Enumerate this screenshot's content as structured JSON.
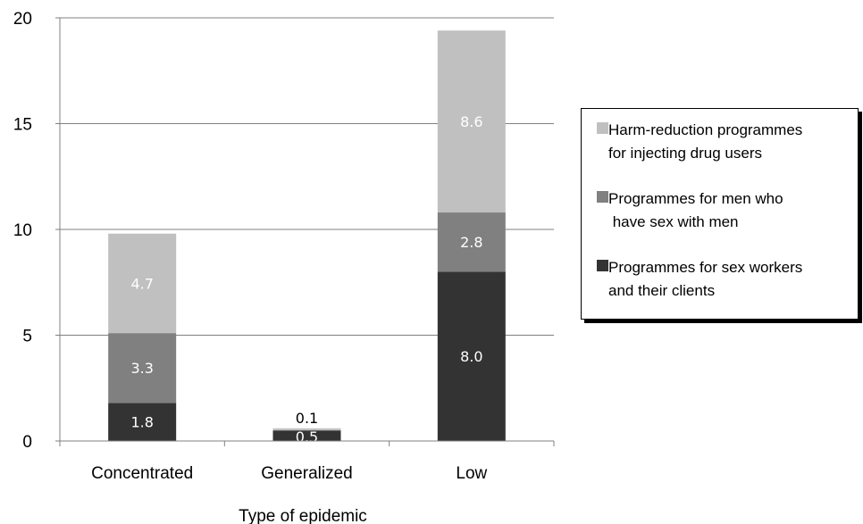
{
  "chart_data": {
    "type": "bar",
    "stacked": true,
    "categories": [
      "Concentrated",
      "Generalized",
      "Low"
    ],
    "series": [
      {
        "name": "Programmes for sex workers\nand their clients",
        "values": [
          1.8,
          0.5,
          8.0
        ],
        "color": "#333333",
        "label_color": "#ffffff"
      },
      {
        "name": "Programmes for men who\n have sex with men",
        "values": [
          3.3,
          0.0,
          2.8
        ],
        "color": "#808080",
        "label_color": "#ffffff"
      },
      {
        "name": "Harm-reduction programmes\nfor injecting drug users",
        "values": [
          4.7,
          0.1,
          8.6
        ],
        "color": "#c0c0c0",
        "label_color": "#ffffff"
      }
    ],
    "data_labels": [
      [
        "1.8",
        "0.5",
        "8.0"
      ],
      [
        "3.3",
        "",
        "2.8"
      ],
      [
        "4.7",
        "0.1",
        "8.6"
      ]
    ],
    "xlabel": "Type of epidemic",
    "ylabel": "",
    "ylim": [
      0,
      20
    ],
    "yticks": [
      0,
      5,
      10,
      15,
      20
    ],
    "grid": true,
    "legend_position": "right",
    "legend_order": [
      2,
      1,
      0
    ]
  }
}
